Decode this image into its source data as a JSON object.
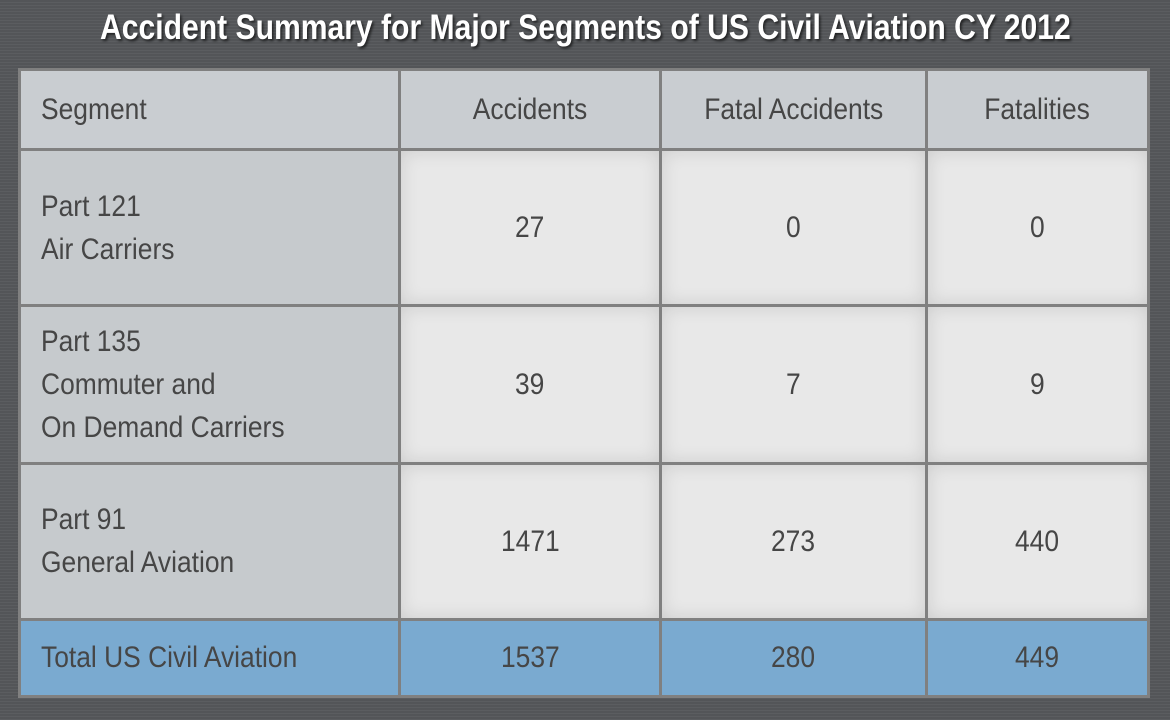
{
  "chart_data": {
    "type": "table",
    "title": "Accident Summary for Major Segments of US Civil Aviation CY 2012",
    "columns": [
      "Segment",
      "Accidents",
      "Fatal Accidents",
      "Fatalities"
    ],
    "rows": [
      {
        "segment": [
          "Part 121",
          "Air Carriers"
        ],
        "accidents": "27",
        "fatal_accidents": "0",
        "fatalities": "0"
      },
      {
        "segment": [
          "Part 135",
          "Commuter and",
          "On Demand Carriers"
        ],
        "accidents": "39",
        "fatal_accidents": "7",
        "fatalities": "9"
      },
      {
        "segment": [
          "Part 91",
          "General Aviation"
        ],
        "accidents": "1471",
        "fatal_accidents": "273",
        "fatalities": "440"
      }
    ],
    "total": {
      "segment": "Total US Civil Aviation",
      "accidents": "1537",
      "fatal_accidents": "280",
      "fatalities": "449"
    },
    "colors": {
      "header": "#c9cdd1",
      "segment_cells": "#c6cacd",
      "value_cells": "#e8e8e8",
      "total_row": "#7aaad0",
      "background": "#56585b"
    }
  }
}
